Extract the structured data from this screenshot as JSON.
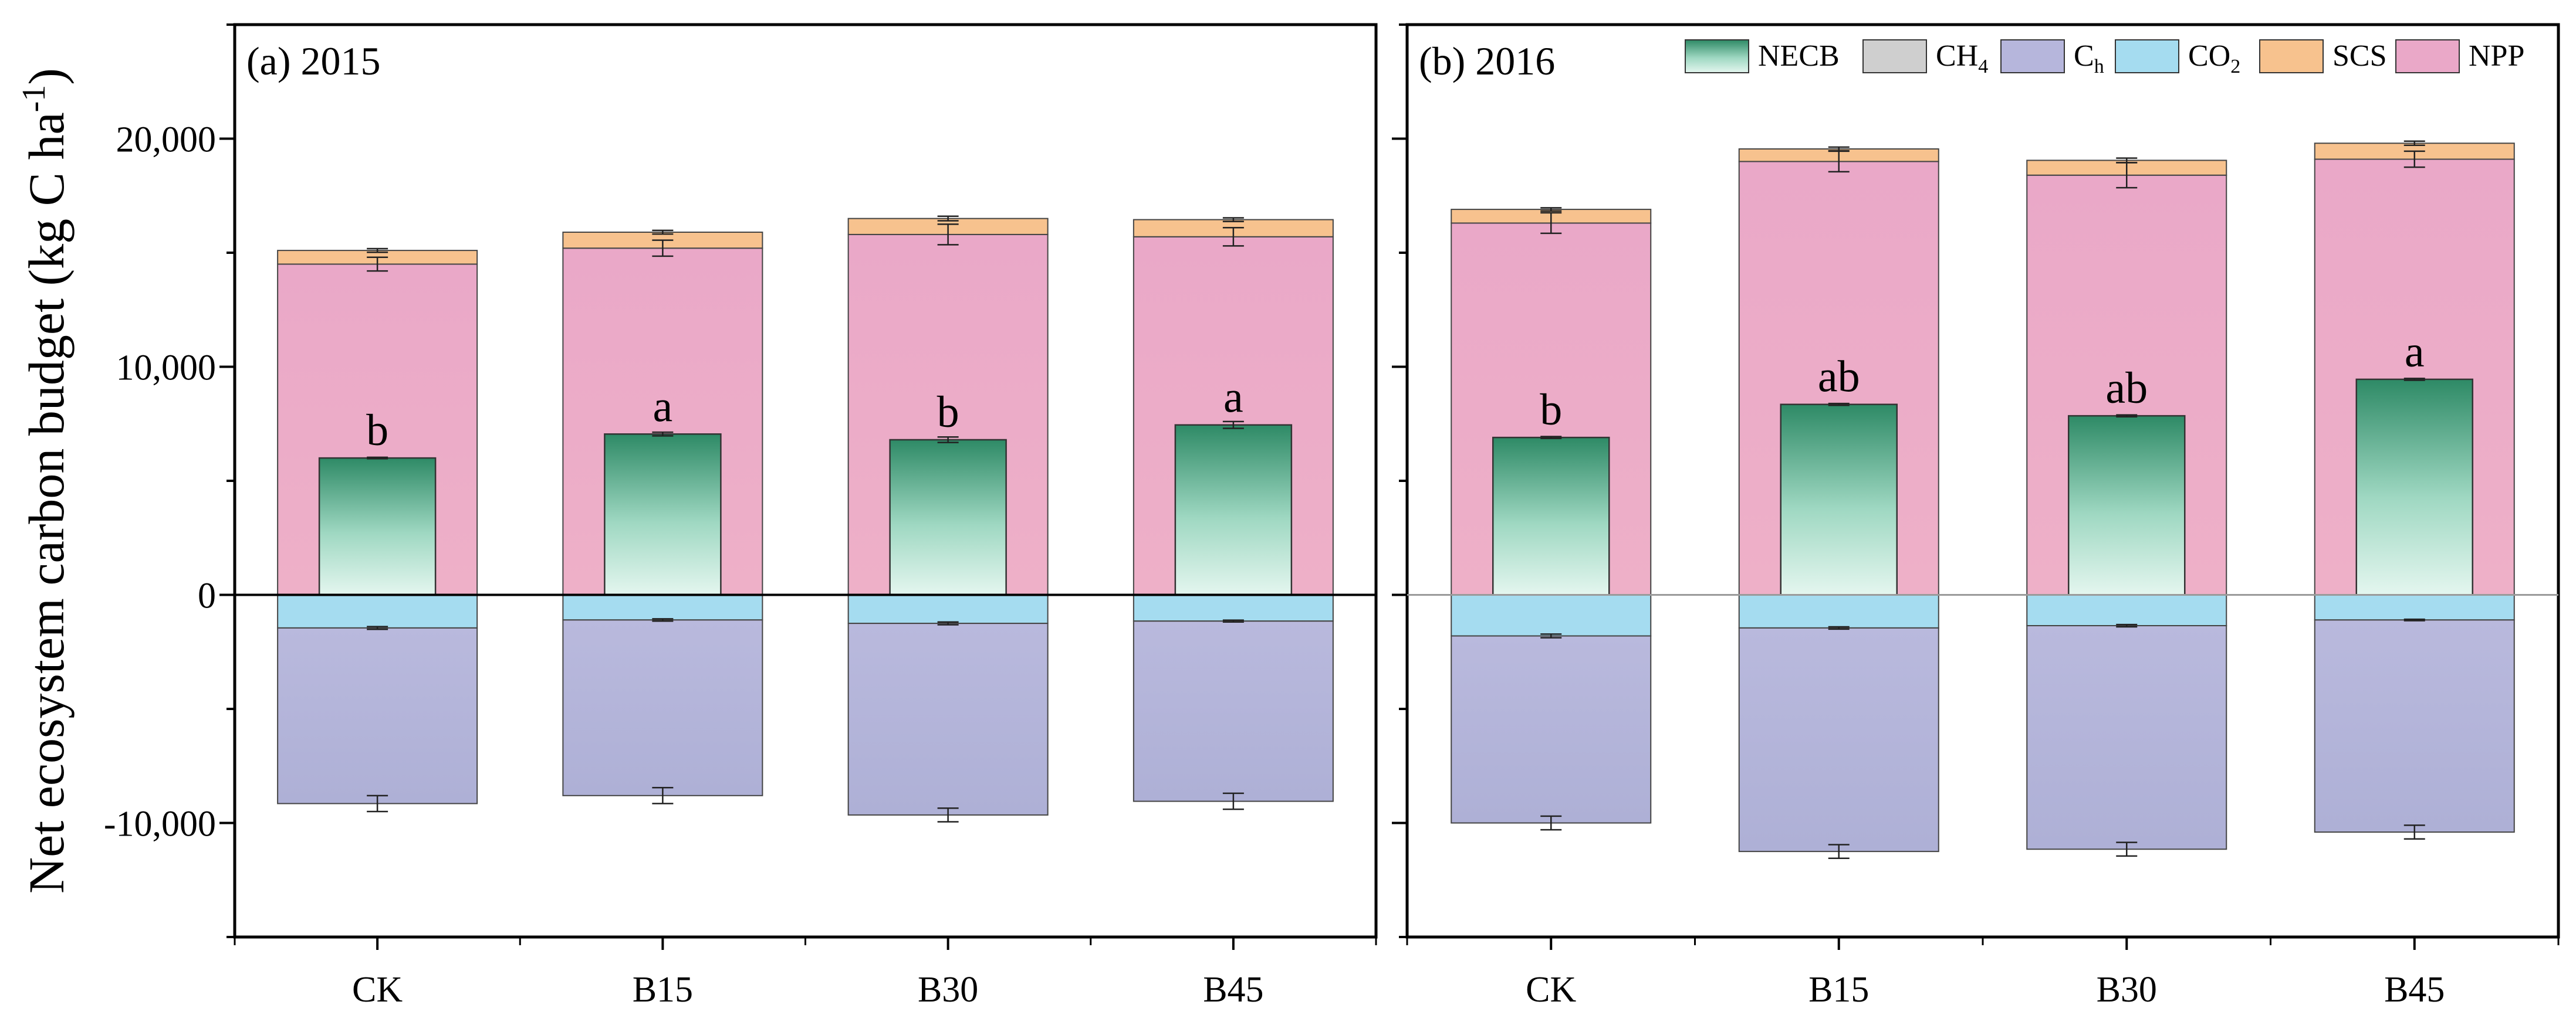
{
  "chart_data": {
    "type": "bar",
    "subtype": "stacked-diverging",
    "ylabel_parts": [
      "Net ecosystem carbon budget (kg C ha",
      "-1",
      ")"
    ],
    "ylim": [
      -15000,
      25000
    ],
    "yticks": [
      -10000,
      0,
      10000,
      20000
    ],
    "ytick_labels": [
      "-10,000",
      "0",
      "10,000",
      "20,000"
    ],
    "categories": [
      "CK",
      "B15",
      "B30",
      "B45"
    ],
    "legend": [
      {
        "key": "NECB",
        "label": "NECB",
        "sub": "",
        "color": "#2e8a66"
      },
      {
        "key": "CH4",
        "label": "CH",
        "sub": "4",
        "color": "#cfcfcf"
      },
      {
        "key": "Ch",
        "label": "C",
        "sub": "h",
        "color": "#b6b6dc"
      },
      {
        "key": "CO2",
        "label": "CO",
        "sub": "2",
        "color": "#a5dcf0"
      },
      {
        "key": "SCS",
        "label": "SCS",
        "sub": "",
        "color": "#f7c28e"
      },
      {
        "key": "NPP",
        "label": "NPP",
        "sub": "",
        "color": "#eaa8c8"
      }
    ],
    "panels": [
      {
        "title": "(a) 2015",
        "series": [
          {
            "name": "NPP",
            "values": [
              14500,
              15200,
              15800,
              15700
            ],
            "errors": [
              300,
              350,
              450,
              400
            ]
          },
          {
            "name": "SCS",
            "values": [
              600,
              700,
              700,
              750
            ],
            "errors": [
              80,
              80,
              100,
              80
            ]
          },
          {
            "name": "CH4",
            "values": [
              -30,
              -30,
              -30,
              -30
            ]
          },
          {
            "name": "CO2",
            "values": [
              -1450,
              -1100,
              -1250,
              -1150
            ],
            "errors": [
              60,
              50,
              60,
              40
            ]
          },
          {
            "name": "Ch",
            "values": [
              -7700,
              -7700,
              -8400,
              -7900
            ],
            "errors": [
              350,
              350,
              300,
              350
            ]
          },
          {
            "name": "NECB",
            "values": [
              6000,
              7050,
              6800,
              7450
            ],
            "errors": [
              30,
              80,
              120,
              150
            ]
          }
        ],
        "significance": [
          "b",
          "a",
          "b",
          "a"
        ]
      },
      {
        "title": "(b) 2016",
        "series": [
          {
            "name": "NPP",
            "values": [
              16300,
              19000,
              18400,
              19100
            ],
            "errors": [
              450,
              450,
              550,
              350
            ]
          },
          {
            "name": "SCS",
            "values": [
              600,
              550,
              650,
              700
            ],
            "errors": [
              70,
              80,
              100,
              90
            ]
          },
          {
            "name": "CH4",
            "values": [
              -30,
              -30,
              -30,
              -30
            ]
          },
          {
            "name": "CO2",
            "values": [
              -1800,
              -1450,
              -1350,
              -1100
            ],
            "errors": [
              80,
              50,
              50,
              30
            ]
          },
          {
            "name": "Ch",
            "values": [
              -8200,
              -9800,
              -9800,
              -9300
            ],
            "errors": [
              300,
              300,
              300,
              300
            ]
          },
          {
            "name": "NECB",
            "values": [
              6900,
              8350,
              7850,
              9450
            ],
            "errors": [
              40,
              40,
              40,
              40
            ]
          }
        ],
        "significance": [
          "b",
          "ab",
          "ab",
          "a"
        ]
      }
    ]
  }
}
